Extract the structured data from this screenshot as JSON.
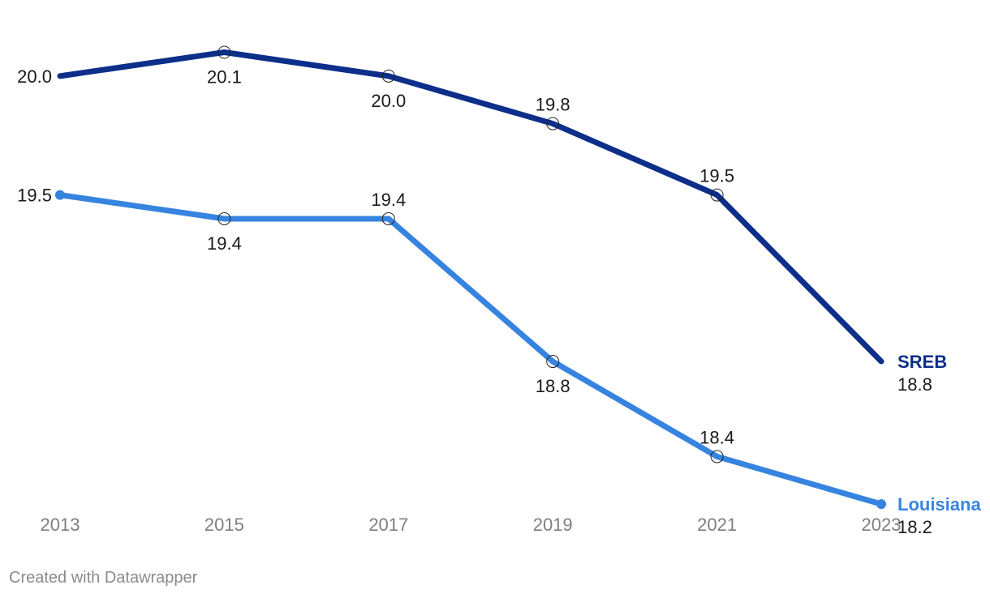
{
  "chart_data": {
    "type": "line",
    "title": "",
    "xlabel": "",
    "ylabel": "",
    "x": [
      "2013",
      "2015",
      "2017",
      "2019",
      "2021",
      "2023"
    ],
    "ylim": [
      18.2,
      20.1
    ],
    "grid": false,
    "legend": "inline-right",
    "series": [
      {
        "name": "SREB",
        "color": "#0d2f8a",
        "values": [
          20.0,
          20.1,
          20.0,
          19.8,
          19.5,
          18.8
        ],
        "labels": [
          "20.0",
          "20.1",
          "20.0",
          "19.8",
          "19.5",
          "18.8"
        ]
      },
      {
        "name": "Louisiana",
        "color": "#3784e0",
        "values": [
          19.5,
          19.4,
          19.4,
          18.8,
          18.4,
          18.2
        ],
        "labels": [
          "19.5",
          "19.4",
          "19.4",
          "18.8",
          "18.4",
          "18.2"
        ]
      }
    ]
  },
  "footer": {
    "credit": "Created with Datawrapper"
  }
}
